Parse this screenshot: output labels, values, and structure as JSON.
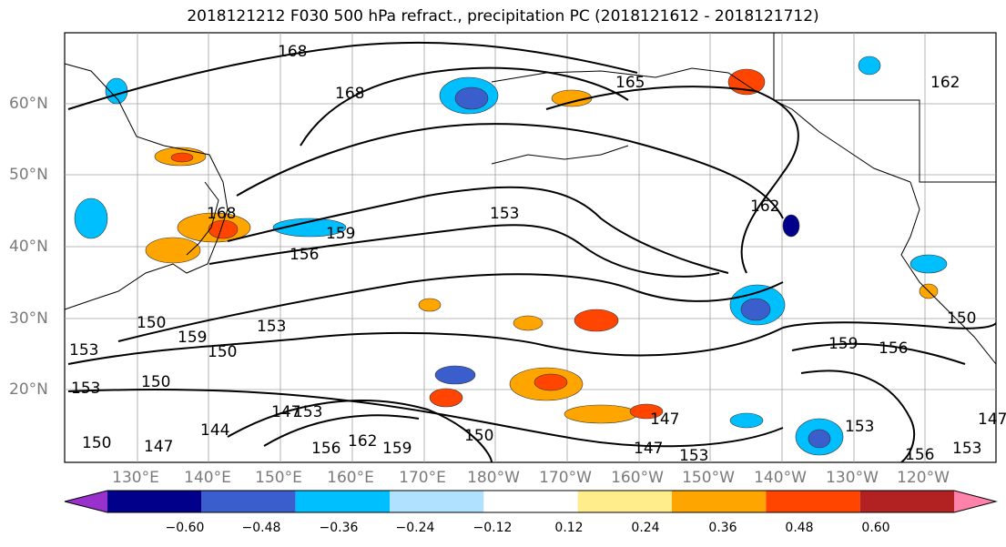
{
  "title": "2018121212 F030 500 hPa refract., precipitation PC (2018121612 - 2018121712)",
  "lat_labels": [
    "60°N",
    "50°N",
    "40°N",
    "30°N",
    "20°N"
  ],
  "lon_labels": [
    "130°E",
    "140°E",
    "150°E",
    "160°E",
    "170°E",
    "180°W",
    "170°W",
    "160°W",
    "150°W",
    "140°W",
    "130°W",
    "120°W"
  ],
  "contour_labels": [
    "168",
    "168",
    "165",
    "162",
    "162",
    "168",
    "159",
    "156",
    "153",
    "150",
    "159",
    "153",
    "150",
    "153",
    "150",
    "153",
    "150",
    "147",
    "144",
    "147",
    "153",
    "156",
    "162",
    "159",
    "150",
    "147",
    "153",
    "147",
    "159",
    "156",
    "150",
    "153",
    "156",
    "153",
    "147"
  ],
  "colorbar": {
    "colors": [
      "#9932cc",
      "#00008b",
      "#3a5fcd",
      "#00bfff",
      "#b0e2ff",
      "#ffffff",
      "#ffec8b",
      "#ffa500",
      "#ff4500",
      "#b22222",
      "#ff82ab"
    ],
    "labels": [
      "−0.60",
      "−0.48",
      "−0.36",
      "−0.24",
      "−0.12",
      "0.12",
      "0.24",
      "0.36",
      "0.48",
      "0.60"
    ]
  }
}
